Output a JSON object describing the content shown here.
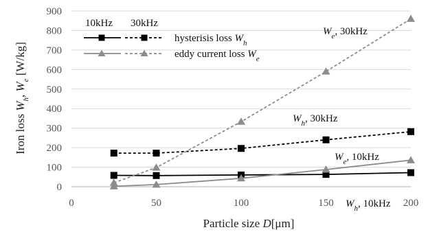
{
  "chart_data": {
    "type": "line",
    "xlabel": {
      "text": "Particle size ",
      "var": "D",
      "unit": "[μm]"
    },
    "ylabel": {
      "text": "Iron loss ",
      "var1": "W",
      "sub1": "h",
      "sep": ", ",
      "var2": "W",
      "sub2": "e",
      "unit": " [W/kg]"
    },
    "xlim": [
      0,
      200
    ],
    "ylim": [
      0,
      900
    ],
    "xticks": [
      0,
      50,
      100,
      150,
      200
    ],
    "yticks": [
      0,
      100,
      200,
      300,
      400,
      500,
      600,
      700,
      800,
      900
    ],
    "grid": {
      "horizontal": true,
      "vertical": false
    },
    "colors": {
      "hysteresis": "#000000",
      "eddy": "#8c8c8c",
      "grid": "#d9d9d9",
      "axis": "#bfbfbf"
    },
    "legend": {
      "placement": "top-left",
      "col_headers": [
        "10kHz",
        "30kHz"
      ],
      "rows": [
        {
          "label": "hysterisis loss ",
          "var": "W",
          "sub": "h"
        },
        {
          "label": "eddy current loss  ",
          "var": "W",
          "sub": "e"
        }
      ]
    },
    "series": [
      {
        "key": "wh10",
        "name": "W_h, 10kHz",
        "marker": "square",
        "dash": "solid",
        "colorKey": "hysteresis",
        "x": [
          25,
          50,
          100,
          150,
          200
        ],
        "values": [
          58,
          57,
          60,
          63,
          72
        ]
      },
      {
        "key": "wh30",
        "name": "W_h, 30kHz",
        "marker": "square",
        "dash": "dashed",
        "colorKey": "hysteresis",
        "x": [
          25,
          50,
          100,
          150,
          200
        ],
        "values": [
          172,
          172,
          196,
          240,
          282
        ]
      },
      {
        "key": "we10",
        "name": "W_e, 10kHz",
        "marker": "triangle",
        "dash": "solid",
        "colorKey": "eddy",
        "x": [
          25,
          50,
          100,
          150,
          200
        ],
        "values": [
          2,
          11,
          43,
          88,
          136
        ]
      },
      {
        "key": "we30",
        "name": "W_e, 30kHz",
        "marker": "triangle",
        "dash": "dashed",
        "colorKey": "eddy",
        "x": [
          25,
          50,
          100,
          150,
          200
        ],
        "values": [
          20,
          98,
          333,
          590,
          860
        ]
      }
    ],
    "annotations": [
      {
        "key": "we30",
        "var": "W",
        "sub": "e",
        "text": ", 30kHz"
      },
      {
        "key": "wh30",
        "var": "W",
        "sub": "h",
        "text": ", 30kHz"
      },
      {
        "key": "we10",
        "var": "W",
        "sub": "e",
        "text": ", 10kHz"
      },
      {
        "key": "wh10",
        "var": "W",
        "sub": "h",
        "text": ", 10kHz"
      }
    ]
  }
}
